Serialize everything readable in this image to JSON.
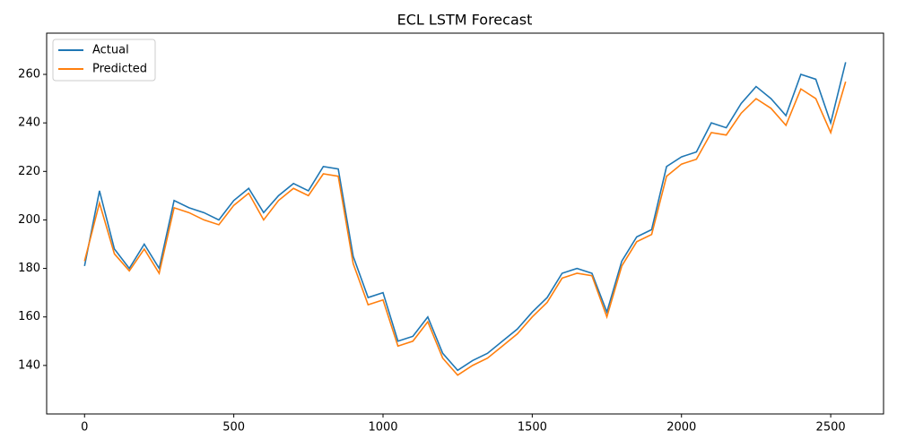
{
  "chart_data": {
    "type": "line",
    "title": "ECL LSTM Forecast",
    "x": [
      0,
      50,
      100,
      150,
      200,
      250,
      300,
      350,
      400,
      450,
      500,
      550,
      600,
      650,
      700,
      750,
      800,
      850,
      900,
      950,
      1000,
      1050,
      1100,
      1150,
      1200,
      1250,
      1300,
      1350,
      1400,
      1450,
      1500,
      1550,
      1600,
      1650,
      1700,
      1750,
      1800,
      1850,
      1900,
      1950,
      2000,
      2050,
      2100,
      2150,
      2200,
      2250,
      2300,
      2350,
      2400,
      2450,
      2500,
      2550
    ],
    "series": [
      {
        "name": "Actual",
        "color": "#1f77b4",
        "values": [
          181,
          212,
          188,
          180,
          190,
          180,
          208,
          205,
          203,
          200,
          208,
          213,
          203,
          210,
          215,
          212,
          222,
          221,
          185,
          168,
          170,
          150,
          152,
          160,
          145,
          138,
          142,
          145,
          150,
          155,
          162,
          168,
          178,
          180,
          178,
          162,
          183,
          193,
          196,
          222,
          226,
          228,
          240,
          238,
          248,
          255,
          250,
          243,
          260,
          258,
          240,
          265
        ]
      },
      {
        "name": "Predicted",
        "color": "#ff7f0e",
        "values": [
          183,
          207,
          186,
          179,
          188,
          178,
          205,
          203,
          200,
          198,
          206,
          211,
          200,
          208,
          213,
          210,
          219,
          218,
          182,
          165,
          167,
          148,
          150,
          158,
          143,
          136,
          140,
          143,
          148,
          153,
          160,
          166,
          176,
          178,
          177,
          160,
          181,
          191,
          194,
          218,
          223,
          225,
          236,
          235,
          244,
          250,
          246,
          239,
          254,
          250,
          236,
          257
        ]
      }
    ],
    "xlim": [
      -127,
      2677
    ],
    "ylim": [
      120,
      277
    ],
    "xticks": [
      0,
      500,
      1000,
      1500,
      2000,
      2500
    ],
    "yticks": [
      140,
      160,
      180,
      200,
      220,
      240,
      260
    ],
    "grid": false,
    "legend": "upper left"
  }
}
